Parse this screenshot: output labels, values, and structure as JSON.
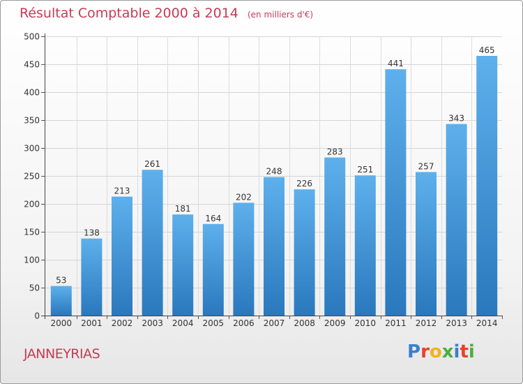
{
  "header": {
    "title": "Résultat Comptable 2000 à 2014",
    "subtitle": "(en milliers d'€)"
  },
  "footer": {
    "commune": "JANNEYRIAS",
    "brand_letters": [
      "P",
      "r",
      "o",
      "x",
      "i",
      "t",
      "i"
    ],
    "brand_colors": [
      "#3a7fd0",
      "#e8402a",
      "#f2b21b",
      "#4caf3e",
      "#3a7fd0",
      "#e8402a",
      "#4caf3e"
    ]
  },
  "chart_data": {
    "type": "bar",
    "categories": [
      "2000",
      "2001",
      "2002",
      "2003",
      "2004",
      "2005",
      "2006",
      "2007",
      "2008",
      "2009",
      "2010",
      "2011",
      "2012",
      "2013",
      "2014"
    ],
    "values": [
      53,
      138,
      213,
      261,
      181,
      164,
      202,
      248,
      226,
      283,
      251,
      441,
      257,
      343,
      465
    ],
    "title": "Résultat Comptable 2000 à 2014",
    "subtitle": "(en milliers d'€)",
    "ylim": [
      0,
      500
    ],
    "yticks": [
      0,
      50,
      100,
      150,
      200,
      250,
      300,
      350,
      400,
      450,
      500
    ],
    "grid": true,
    "data_labels": true,
    "bar_color": "#3a8fd6"
  }
}
